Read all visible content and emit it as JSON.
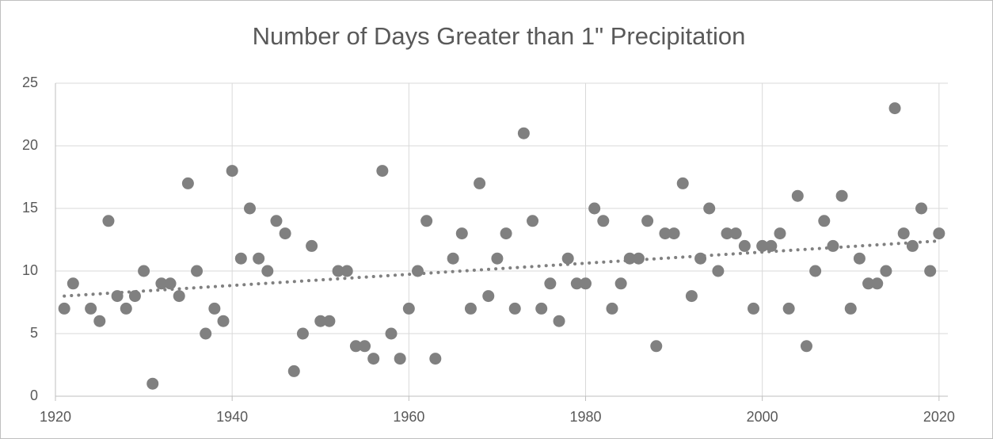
{
  "chart_data": {
    "type": "scatter",
    "title": "Number of Days Greater than 1\" Precipitation",
    "x": [
      1921,
      1922,
      1924,
      1925,
      1926,
      1927,
      1928,
      1929,
      1930,
      1931,
      1932,
      1933,
      1934,
      1935,
      1936,
      1937,
      1938,
      1939,
      1940,
      1941,
      1942,
      1943,
      1944,
      1945,
      1946,
      1947,
      1948,
      1949,
      1950,
      1951,
      1952,
      1953,
      1954,
      1955,
      1956,
      1957,
      1958,
      1959,
      1960,
      1961,
      1962,
      1963,
      1965,
      1966,
      1967,
      1968,
      1969,
      1970,
      1971,
      1972,
      1973,
      1974,
      1975,
      1976,
      1977,
      1978,
      1979,
      1980,
      1981,
      1982,
      1983,
      1984,
      1985,
      1986,
      1987,
      1988,
      1989,
      1990,
      1991,
      1992,
      1993,
      1994,
      1995,
      1996,
      1997,
      1998,
      1999,
      2000,
      2001,
      2002,
      2003,
      2004,
      2005,
      2006,
      2007,
      2008,
      2009,
      2010,
      2011,
      2012,
      2013,
      2014,
      2015,
      2016,
      2017,
      2018,
      2019,
      2020
    ],
    "values": [
      7,
      9,
      7,
      6,
      14,
      8,
      7,
      8,
      10,
      1,
      9,
      9,
      8,
      17,
      10,
      5,
      7,
      6,
      18,
      11,
      15,
      11,
      10,
      14,
      13,
      2,
      5,
      12,
      6,
      6,
      10,
      10,
      4,
      4,
      3,
      18,
      5,
      3,
      7,
      10,
      14,
      3,
      11,
      13,
      7,
      17,
      8,
      11,
      13,
      7,
      21,
      14,
      7,
      9,
      6,
      11,
      9,
      9,
      15,
      14,
      7,
      9,
      11,
      11,
      14,
      4,
      13,
      13,
      17,
      8,
      11,
      15,
      10,
      13,
      13,
      12,
      7,
      12,
      12,
      13,
      7,
      16,
      4,
      10,
      14,
      12,
      16,
      7,
      11,
      9,
      9,
      10,
      23,
      13,
      12,
      15,
      10,
      13
    ],
    "color": "#808080",
    "trendline": {
      "x": [
        1921,
        2020
      ],
      "values": [
        8.0,
        12.4
      ],
      "color": "#808080"
    },
    "xlim": [
      1920,
      2021
    ],
    "xticks": [
      1920,
      1940,
      1960,
      1980,
      2000,
      2020
    ],
    "ylim": [
      0,
      25
    ],
    "yticks": [
      0,
      5,
      10,
      15,
      20,
      25
    ],
    "grid": true
  }
}
